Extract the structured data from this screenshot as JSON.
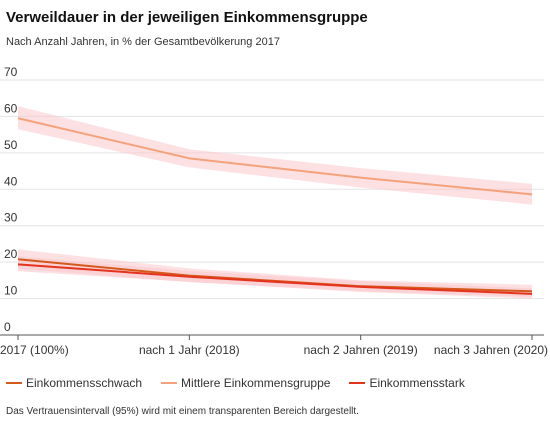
{
  "chart_data": {
    "type": "line",
    "title": "Verweildauer in der jeweiligen Einkommensgruppe",
    "subtitle": "Nach Anzahl Jahren, in % der Gesamtbevölkerung 2017",
    "categories": [
      "2017 (100%)",
      "nach 1 Jahr (2018)",
      "nach 2 Jahren (2019)",
      "nach 3 Jahren (2020)"
    ],
    "ylim": [
      0,
      70
    ],
    "yticks": [
      0,
      10,
      20,
      30,
      40,
      50,
      60,
      70
    ],
    "grid": true,
    "legend_position": "bottom",
    "series": [
      {
        "name": "Mittlere Einkommensgruppe",
        "color": "#f4a27b",
        "band_color": "#f9c6cb",
        "values": [
          59.5,
          48.5,
          43.2,
          38.6
        ],
        "ci_lower": [
          56.5,
          46.0,
          40.5,
          35.8
        ],
        "ci_upper": [
          62.8,
          51.0,
          45.8,
          41.5
        ]
      },
      {
        "name": "Einkommensschwach",
        "color": "#d35a1c",
        "band_color": "#f9c6cb",
        "values": [
          20.8,
          16.3,
          13.4,
          12.0
        ],
        "ci_lower": [
          18.2,
          14.5,
          12.0,
          10.5
        ],
        "ci_upper": [
          23.5,
          18.3,
          15.0,
          13.8
        ]
      },
      {
        "name": "Einkommensstark",
        "color": "#e5341d",
        "band_color": "#f9c6cb",
        "values": [
          19.4,
          16.0,
          13.2,
          11.3
        ],
        "ci_lower": [
          17.5,
          14.6,
          11.8,
          10.0
        ],
        "ci_upper": [
          21.6,
          17.6,
          14.8,
          12.8
        ]
      }
    ],
    "legend_order": [
      "Einkommensschwach",
      "Mittlere Einkommensgruppe",
      "Einkommensstark"
    ]
  },
  "footnote": "Das Vertrauensintervall (95%) wird mit einem transparenten Bereich dargestellt."
}
